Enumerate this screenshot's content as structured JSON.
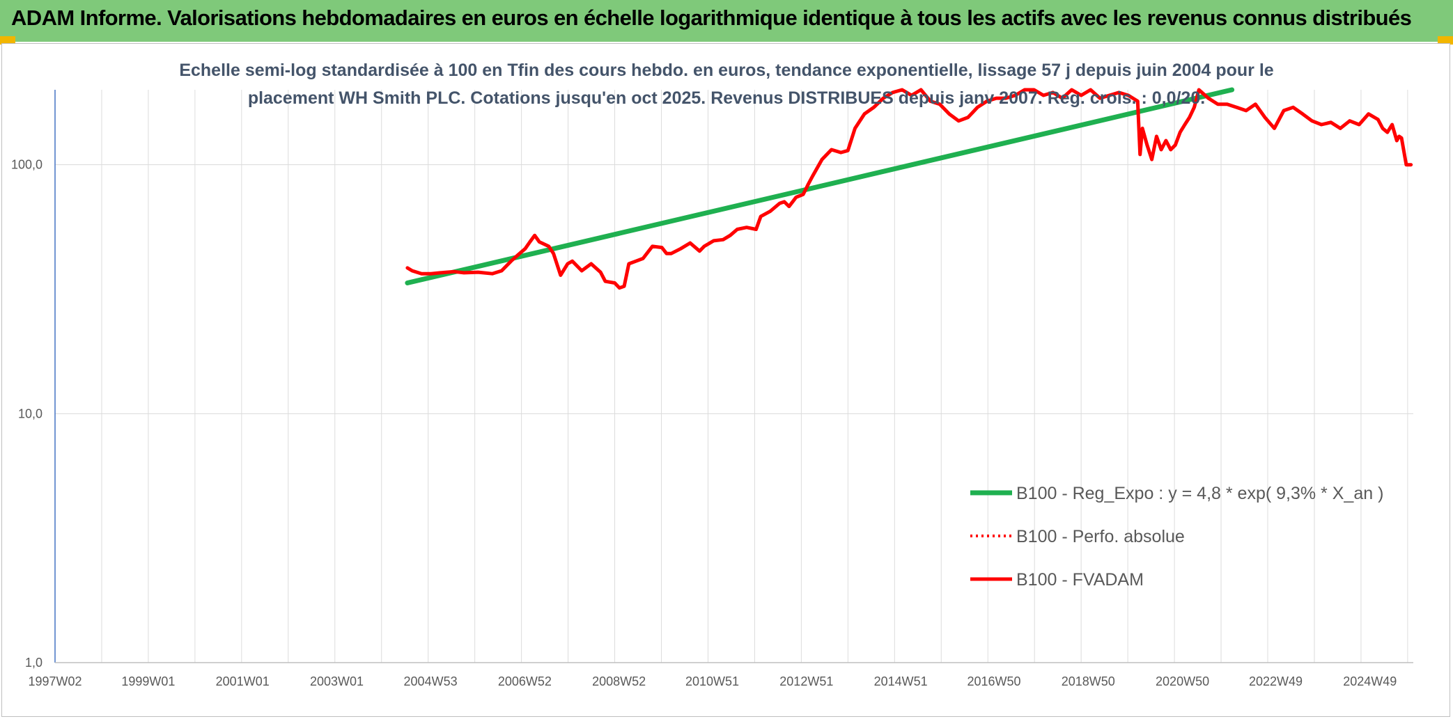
{
  "header": {
    "title": "ADAM Informe. Valorisations hebdomadaires en euros en échelle logarithmique identique à tous les actifs avec les revenus connus distribués",
    "background_color": "#7fc97a",
    "corner_color": "#f2b600"
  },
  "chart_data": {
    "type": "line",
    "subtitle_lines": [
      "Echelle semi-log standardisée à 100 en Tfin des cours hebdo. en euros, tendance exponentielle, lissage 57 j depuis juin 2004 pour le",
      "placement WH Smith PLC. Cotations jusqu'en oct 2025. Revenus DISTRIBUES depuis janv 2007. Reg. crois. : 0,0/20."
    ],
    "y_scale": "log",
    "ylim": [
      1,
      200
    ],
    "y_ticks": [
      {
        "value": 1,
        "label": "1,0"
      },
      {
        "value": 10,
        "label": "10,0"
      },
      {
        "value": 100,
        "label": "100,0"
      }
    ],
    "xlim": [
      1997.02,
      2025.85
    ],
    "x_ticks": [
      {
        "value": 1997.02,
        "label": "1997W02"
      },
      {
        "value": 1999.0,
        "label": "1999W01"
      },
      {
        "value": 2001.0,
        "label": "2001W01"
      },
      {
        "value": 2003.0,
        "label": "2003W01"
      },
      {
        "value": 2004.99,
        "label": "2004W53"
      },
      {
        "value": 2006.99,
        "label": "2006W52"
      },
      {
        "value": 2008.99,
        "label": "2008W52"
      },
      {
        "value": 2010.97,
        "label": "2010W51"
      },
      {
        "value": 2012.97,
        "label": "2012W51"
      },
      {
        "value": 2014.97,
        "label": "2014W51"
      },
      {
        "value": 2016.95,
        "label": "2016W50"
      },
      {
        "value": 2018.95,
        "label": "2018W50"
      },
      {
        "value": 2020.95,
        "label": "2020W50"
      },
      {
        "value": 2022.93,
        "label": "2022W49"
      },
      {
        "value": 2024.93,
        "label": "2024W49"
      }
    ],
    "grid": "vertical-and-horizontal",
    "legend_position": "bottom-right",
    "series": [
      {
        "name": "B100 - Reg_Expo : y = 4,8 * exp( 9,3% *  X_an )",
        "color": "#1fb050",
        "style": "solid",
        "x": [
          2004.5,
          2022.0
        ],
        "y": [
          33.5,
          200
        ]
      },
      {
        "name": "B100 - Perfo. absolue",
        "color": "#ff0000",
        "style": "dotted",
        "x": [],
        "y": []
      },
      {
        "name": "B100 - FVADAM",
        "color": "#ff0000",
        "style": "solid",
        "x": [
          2004.5,
          2004.6,
          2004.8,
          2005.0,
          2005.2,
          2005.5,
          2005.7,
          2006.0,
          2006.3,
          2006.5,
          2006.7,
          2006.85,
          2007.0,
          2007.1,
          2007.2,
          2007.3,
          2007.5,
          2007.6,
          2007.75,
          2007.9,
          2008.0,
          2008.2,
          2008.4,
          2008.6,
          2008.7,
          2008.9,
          2009.0,
          2009.1,
          2009.2,
          2009.35,
          2009.5,
          2009.7,
          2009.9,
          2010.0,
          2010.1,
          2010.3,
          2010.5,
          2010.7,
          2010.8,
          2011.0,
          2011.2,
          2011.35,
          2011.5,
          2011.7,
          2011.9,
          2012.0,
          2012.2,
          2012.4,
          2012.5,
          2012.6,
          2012.75,
          2012.9,
          2013.0,
          2013.1,
          2013.3,
          2013.5,
          2013.7,
          2013.85,
          2014.0,
          2014.2,
          2014.4,
          2014.6,
          2014.8,
          2015.0,
          2015.2,
          2015.4,
          2015.6,
          2015.8,
          2016.0,
          2016.2,
          2016.4,
          2016.6,
          2016.8,
          2017.0,
          2017.2,
          2017.4,
          2017.6,
          2017.8,
          2018.0,
          2018.2,
          2018.4,
          2018.6,
          2018.8,
          2019.0,
          2019.2,
          2019.4,
          2019.6,
          2019.8,
          2020.0,
          2020.05,
          2020.1,
          2020.2,
          2020.3,
          2020.4,
          2020.5,
          2020.6,
          2020.7,
          2020.8,
          2020.9,
          2021.0,
          2021.1,
          2021.2,
          2021.3,
          2021.5,
          2021.7,
          2021.9,
          2022.1,
          2022.3,
          2022.5,
          2022.7,
          2022.9,
          2023.1,
          2023.3,
          2023.5,
          2023.7,
          2023.9,
          2024.1,
          2024.3,
          2024.5,
          2024.7,
          2024.9,
          2025.1,
          2025.2,
          2025.3,
          2025.4,
          2025.5,
          2025.55,
          2025.6,
          2025.7,
          2025.8
        ],
        "y": [
          38.5,
          37.5,
          36.5,
          36.5,
          36.8,
          37.2,
          36.8,
          37.0,
          36.5,
          37.5,
          41.0,
          43.5,
          46.0,
          49.0,
          52.0,
          49.0,
          47.0,
          44.0,
          36.0,
          40.0,
          41.0,
          37.5,
          40.0,
          37.0,
          34.0,
          33.5,
          32.0,
          32.5,
          40.0,
          41.0,
          42.0,
          47.0,
          46.5,
          44.0,
          44.0,
          46.0,
          48.5,
          45.0,
          47.0,
          49.5,
          50.0,
          52.0,
          55.0,
          56.0,
          55.0,
          62.0,
          65.0,
          70.0,
          71.0,
          68.0,
          74.0,
          76.0,
          83.0,
          90.0,
          105.0,
          115.0,
          112.0,
          114.0,
          140.0,
          160.0,
          170.0,
          185.0,
          195.0,
          200.0,
          190.0,
          200.0,
          180.0,
          175.0,
          160.0,
          150.0,
          155.0,
          170.0,
          180.0,
          185.0,
          185.0,
          190.0,
          200.0,
          200.0,
          190.0,
          195.0,
          185.0,
          200.0,
          190.0,
          200.0,
          185.0,
          190.0,
          195.0,
          190.0,
          180.0,
          110.0,
          140.0,
          120.0,
          105.0,
          130.0,
          115.0,
          125.0,
          115.0,
          120.0,
          135.0,
          145.0,
          155.0,
          170.0,
          200.0,
          185.0,
          175.0,
          175.0,
          170.0,
          165.0,
          175.0,
          155.0,
          140.0,
          165.0,
          170.0,
          160.0,
          150.0,
          145.0,
          148.0,
          140.0,
          150.0,
          145.0,
          160.0,
          152.0,
          140.0,
          135.0,
          145.0,
          125.0,
          130.0,
          128.0,
          100.0,
          100.0
        ]
      }
    ]
  }
}
